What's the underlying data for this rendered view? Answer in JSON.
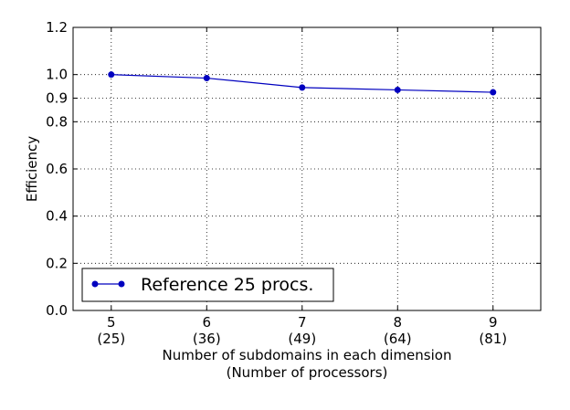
{
  "chart_data": {
    "type": "line",
    "x": [
      5,
      6,
      7,
      8,
      9
    ],
    "x_tick_labels": [
      {
        "value": 5,
        "line1": "5",
        "line2": "(25)"
      },
      {
        "value": 6,
        "line1": "6",
        "line2": "(36)"
      },
      {
        "value": 7,
        "line1": "7",
        "line2": "(49)"
      },
      {
        "value": 8,
        "line1": "8",
        "line2": "(64)"
      },
      {
        "value": 9,
        "line1": "9",
        "line2": "(81)"
      }
    ],
    "y_ticks": [
      0.0,
      0.2,
      0.4,
      0.6,
      0.8,
      0.9,
      1.0,
      1.2
    ],
    "y_tick_labels": [
      "0.0",
      "0.2",
      "0.4",
      "0.6",
      "0.8",
      "0.9",
      "1.0",
      "1.2"
    ],
    "series": [
      {
        "name": "Reference 25 procs.",
        "values": [
          1.0,
          0.985,
          0.945,
          0.935,
          0.925
        ],
        "color": "#0000bf",
        "marker": "circle"
      }
    ],
    "xlabel": "Number of subdomains in each dimension",
    "xlabel_line2": "(Number of processors)",
    "ylabel": "Efficiency",
    "xlim": [
      4.6,
      9.5
    ],
    "ylim": [
      0.0,
      1.2
    ],
    "grid": true,
    "legend_position": "lower-left"
  }
}
